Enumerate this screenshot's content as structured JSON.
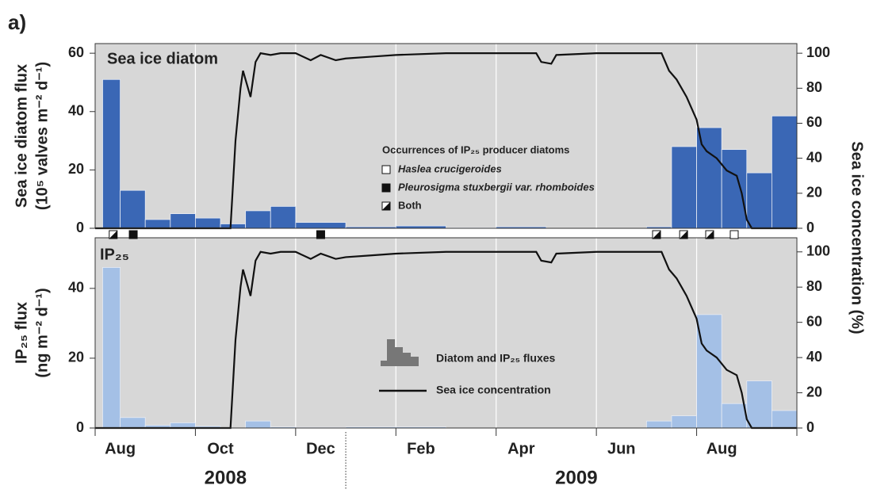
{
  "chart_data": {
    "type": "histogram",
    "panel_label": "a)",
    "xlim": [
      0,
      14
    ],
    "xticks": [
      0,
      2,
      4,
      6,
      8,
      10,
      12,
      14
    ],
    "x_labels": [
      {
        "value": 0.5,
        "label": "Aug"
      },
      {
        "value": 2.5,
        "label": "Oct"
      },
      {
        "value": 4.5,
        "label": "Dec"
      },
      {
        "value": 6.5,
        "label": "Feb"
      },
      {
        "value": 8.5,
        "label": "Apr"
      },
      {
        "value": 10.5,
        "label": "Jun"
      },
      {
        "value": 12.5,
        "label": "Aug"
      }
    ],
    "year_labels": [
      {
        "value": 2.6,
        "label": "2008"
      },
      {
        "value": 9.6,
        "label": "2009"
      }
    ],
    "year_divider": 5,
    "bins": [
      0.15,
      0.5,
      1,
      1.5,
      2,
      2.5,
      3,
      3.5,
      4,
      5,
      6,
      7,
      8,
      9,
      11,
      11.5,
      12,
      12.5,
      13,
      13.5,
      14
    ],
    "panels": [
      {
        "title": "Sea ice diatom",
        "ylabel": [
          "Sea ice diatom flux",
          "(10⁵ valves m⁻² d⁻¹)"
        ],
        "color": "#3a67b5",
        "ylim": [
          0,
          63.3
        ],
        "yticks": [
          0,
          20,
          40,
          60
        ],
        "y2lim": [
          0,
          105.5
        ],
        "y2ticks": [
          0,
          20,
          40,
          60,
          80,
          100
        ],
        "values": [
          51,
          13,
          3,
          5,
          3.5,
          1.5,
          6,
          7.5,
          2,
          0.5,
          0.8,
          0.2,
          0.5,
          null,
          0.5,
          28,
          34.5,
          27,
          19,
          38.5
        ]
      },
      {
        "title": "IP₂₅",
        "ylabel": [
          "IP₂₅ flux",
          "(ng m⁻² d⁻¹)"
        ],
        "color": "#a4c0e6",
        "ylim": [
          0,
          54.5
        ],
        "yticks": [
          0,
          20,
          40
        ],
        "y2lim": [
          0,
          108
        ],
        "y2ticks": [
          0,
          20,
          40,
          60,
          80,
          100
        ],
        "values": [
          46,
          3,
          0.8,
          1.5,
          0.5,
          0,
          2,
          0.3,
          0.2,
          0.3,
          0.3,
          0,
          0,
          null,
          2,
          3.5,
          32.5,
          7,
          13.5,
          5
        ]
      }
    ],
    "y2label": "Sea ice concentration (%)",
    "bar_legend": "Diatom and IP₂₅ fluxes",
    "line": {
      "name": "Sea ice concentration",
      "color": "#111111",
      "x": [
        0,
        2.7,
        2.8,
        2.9,
        2.95,
        3.0,
        3.1,
        3.2,
        3.3,
        3.5,
        3.7,
        4.0,
        4.3,
        4.5,
        4.8,
        5.0,
        5.5,
        6.0,
        7.0,
        8.0,
        8.8,
        8.9,
        9.1,
        9.2,
        10.0,
        11.0,
        11.3,
        11.45,
        11.6,
        11.7,
        11.8,
        12.0,
        12.1,
        12.2,
        12.4,
        12.6,
        12.8,
        12.9,
        13.0,
        13.1,
        14
      ],
      "values": [
        0,
        0,
        50,
        80,
        90,
        85,
        75,
        95,
        100,
        99,
        100,
        100,
        96,
        99,
        96,
        97,
        98,
        99,
        100,
        100,
        100,
        95,
        94,
        99,
        100,
        100,
        100,
        90,
        85,
        80,
        75,
        62,
        48,
        44,
        40,
        33,
        30,
        20,
        5,
        0,
        0
      ]
    },
    "occurrences": {
      "title": "Occurrences of IP₂₅ producer diatoms",
      "kinds": [
        "Haslea crucigeroides",
        "Pleurosigma stuxbergii var. rhomboides",
        "Both"
      ],
      "x": [
        0.36,
        0.76,
        4.5,
        11.2,
        11.74,
        12.26,
        12.75
      ],
      "kind": [
        2,
        1,
        1,
        2,
        2,
        2,
        0
      ]
    }
  }
}
